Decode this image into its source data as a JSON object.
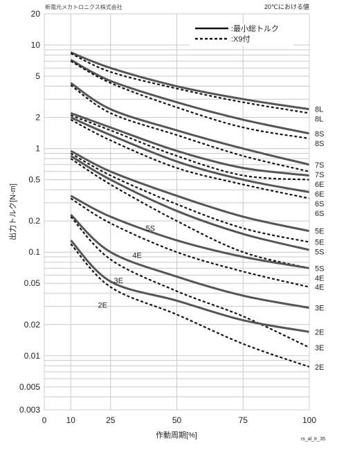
{
  "header": {
    "company": "新電元メカトロニクス株式会社",
    "condition": "20℃における値"
  },
  "footer": {
    "code": "rs_al_tr_35"
  },
  "legend": {
    "min_torque": ":最小総トルク",
    "x9": ":X9付"
  },
  "chart_data": {
    "type": "line",
    "ylabel": "出力トルク[N-m]",
    "xlabel": "作動周期[%]",
    "yscale": "log",
    "xlim": [
      0,
      100
    ],
    "ylim": [
      0.003,
      20
    ],
    "grid": true,
    "legend_position": "top-right",
    "x_ticks": [
      "0",
      "10",
      "25",
      "50",
      "75",
      "100"
    ],
    "y_ticks": [
      "20",
      "10",
      "5",
      "2",
      "1",
      "0.5",
      "0.2",
      "0.1",
      "0.05",
      "0.02",
      "0.01",
      "0.005",
      "0.003"
    ],
    "series": [
      {
        "name": "8L",
        "style": "solid",
        "x": [
          10,
          25,
          50,
          75,
          100
        ],
        "y": [
          8.5,
          6.0,
          4.0,
          3.0,
          2.4
        ]
      },
      {
        "name": "8L",
        "style": "dashed",
        "x": [
          10,
          25,
          50,
          75,
          100
        ],
        "y": [
          8.3,
          5.5,
          3.8,
          2.8,
          2.2
        ]
      },
      {
        "name": "8S",
        "style": "solid",
        "x": [
          10,
          25,
          50,
          75,
          100
        ],
        "y": [
          7.2,
          4.5,
          2.8,
          1.9,
          1.4
        ]
      },
      {
        "name": "8S",
        "style": "dashed",
        "x": [
          10,
          25,
          50,
          75,
          100
        ],
        "y": [
          7.0,
          4.3,
          2.5,
          1.6,
          1.25
        ]
      },
      {
        "name": "7S",
        "style": "solid",
        "x": [
          10,
          25,
          50,
          75,
          100
        ],
        "y": [
          4.3,
          2.4,
          1.5,
          1.0,
          0.7
        ]
      },
      {
        "name": "7S",
        "style": "dashed",
        "x": [
          10,
          25,
          50,
          75,
          100
        ],
        "y": [
          4.1,
          2.2,
          1.35,
          0.85,
          0.6
        ]
      },
      {
        "name": "6E",
        "style": "solid",
        "x": [
          10,
          25,
          50,
          75,
          100
        ],
        "y": [
          2.2,
          1.6,
          0.95,
          0.65,
          0.55
        ]
      },
      {
        "name": "6E",
        "style": "dashed",
        "x": [
          10,
          25,
          50,
          75,
          100
        ],
        "y": [
          2.1,
          1.5,
          0.85,
          0.55,
          0.5
        ]
      },
      {
        "name": "6S",
        "style": "solid",
        "x": [
          10,
          25,
          50,
          75,
          100
        ],
        "y": [
          2.0,
          1.35,
          0.75,
          0.5,
          0.38
        ]
      },
      {
        "name": "6S",
        "style": "dashed",
        "x": [
          10,
          25,
          50,
          75,
          100
        ],
        "y": [
          1.9,
          1.2,
          0.65,
          0.45,
          0.33
        ]
      },
      {
        "name": "5E",
        "style": "solid",
        "x": [
          10,
          25,
          50,
          75,
          100
        ],
        "y": [
          0.95,
          0.6,
          0.35,
          0.22,
          0.16
        ]
      },
      {
        "name": "5E",
        "style": "dashed",
        "x": [
          10,
          25,
          50,
          75,
          100
        ],
        "y": [
          0.9,
          0.55,
          0.29,
          0.17,
          0.125
        ]
      },
      {
        "name": "5S",
        "style": "solid",
        "x": [
          10,
          25,
          50,
          75,
          100
        ],
        "y": [
          0.85,
          0.5,
          0.25,
          0.15,
          0.105
        ]
      },
      {
        "name": "5S",
        "style": "dashed",
        "x": [
          10,
          25,
          50,
          75,
          100
        ],
        "y": [
          0.8,
          0.45,
          0.2,
          0.1,
          0.07
        ]
      },
      {
        "name": "4E",
        "style": "solid",
        "x": [
          10,
          25,
          50,
          75,
          100
        ],
        "y": [
          0.35,
          0.22,
          0.13,
          0.09,
          0.07
        ]
      },
      {
        "name": "4E",
        "style": "dashed",
        "x": [
          10,
          25,
          50,
          75,
          100
        ],
        "y": [
          0.33,
          0.19,
          0.1,
          0.065,
          0.046
        ]
      },
      {
        "name": "3E",
        "style": "solid",
        "x": [
          10,
          25,
          50,
          75,
          100
        ],
        "y": [
          0.23,
          0.1,
          0.058,
          0.038,
          0.029
        ]
      },
      {
        "name": "3E",
        "style": "dashed",
        "x": [
          10,
          25,
          50,
          75,
          100
        ],
        "y": [
          0.22,
          0.085,
          0.042,
          0.024,
          0.012
        ]
      },
      {
        "name": "2E",
        "style": "solid",
        "x": [
          10,
          25,
          50,
          75,
          100
        ],
        "y": [
          0.13,
          0.052,
          0.034,
          0.022,
          0.017
        ]
      },
      {
        "name": "2E",
        "style": "dashed",
        "x": [
          10,
          25,
          50,
          75,
          100
        ],
        "y": [
          0.12,
          0.046,
          0.025,
          0.013,
          0.0078
        ]
      }
    ],
    "inline_labels": [
      "5S",
      "4E",
      "3E",
      "2E"
    ]
  }
}
